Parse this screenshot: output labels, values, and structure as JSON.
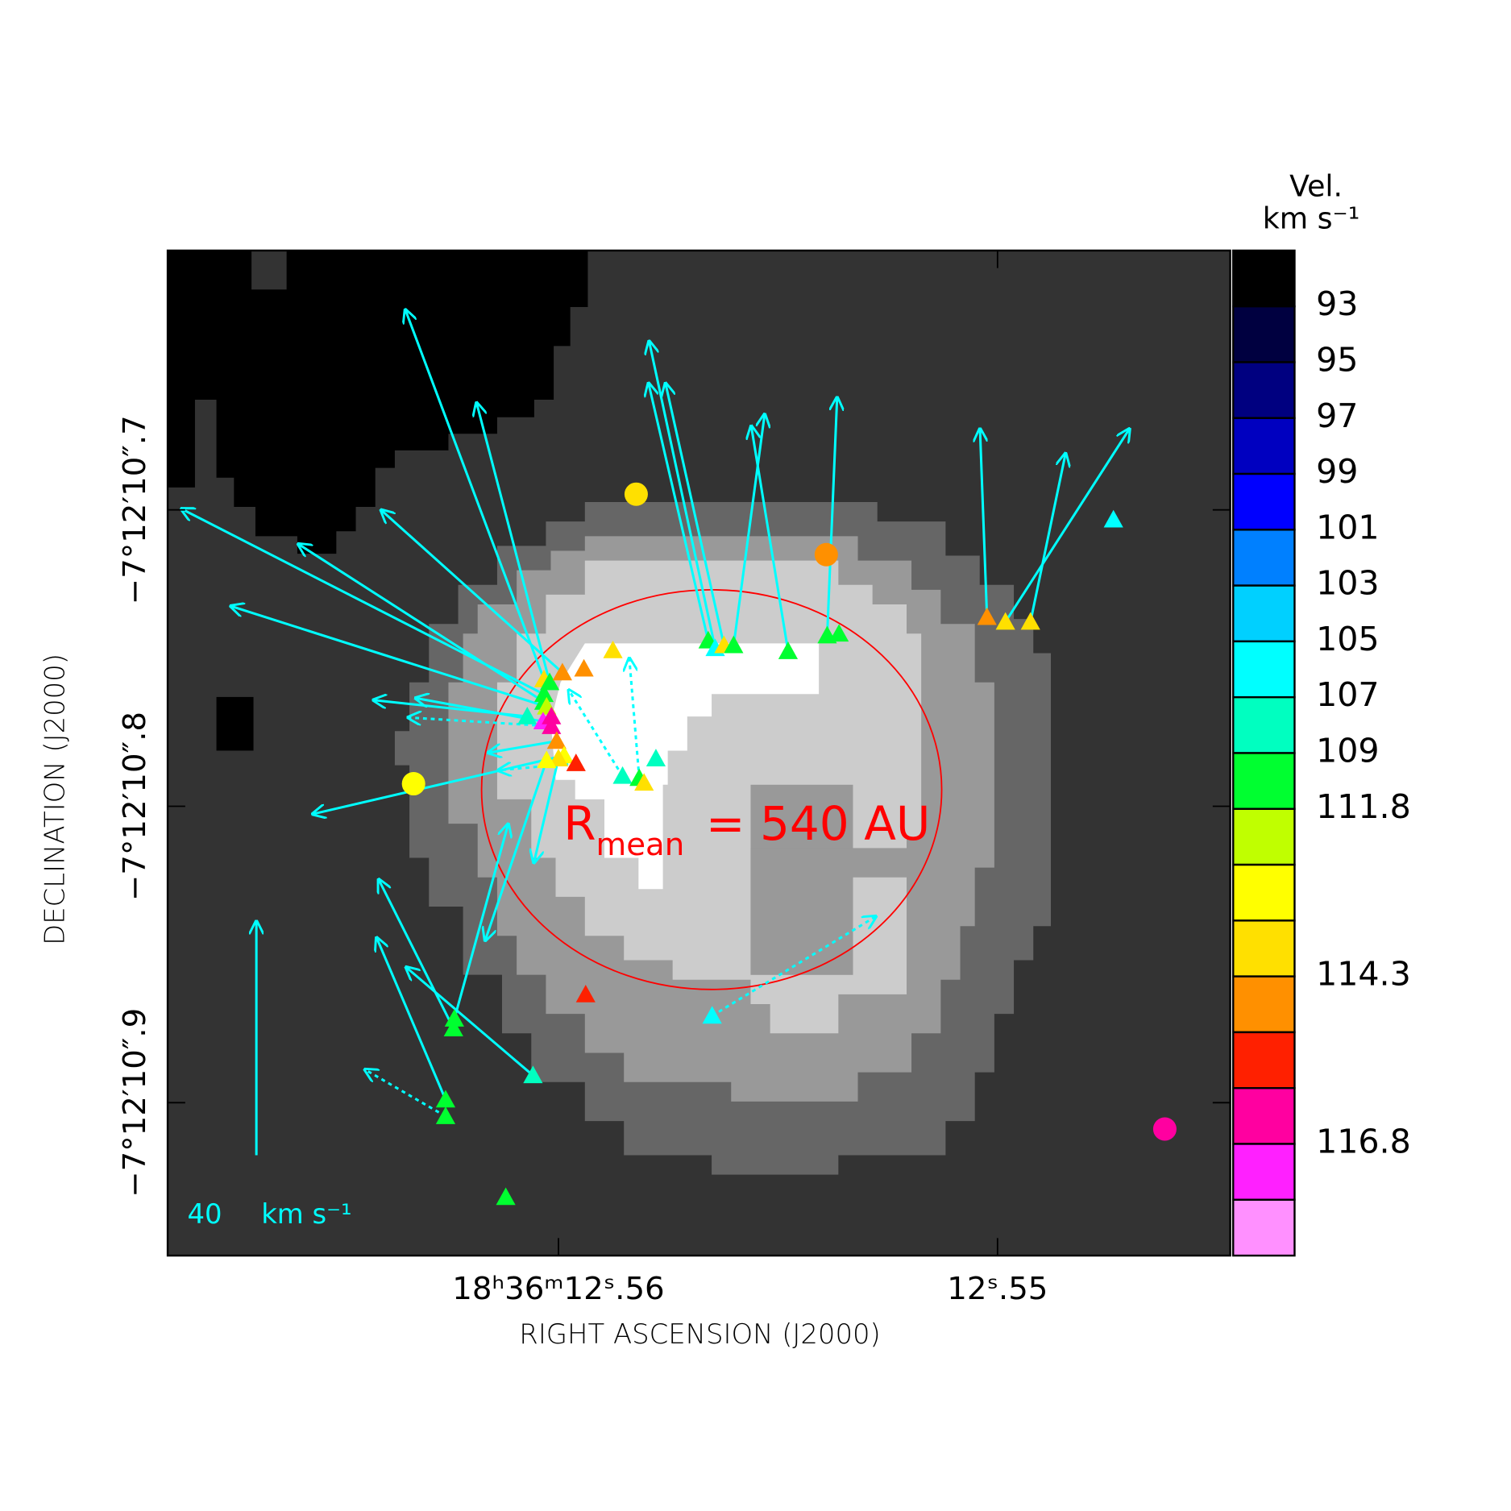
{
  "chart_data": {
    "type": "scatter",
    "x_label": "RIGHT ASCENSION (J2000)",
    "y_label": "DECLINATION (J2000)",
    "xlim": [
      12.5689,
      12.5447
    ],
    "ylim": [
      10.9516,
      10.6125
    ],
    "xticks": [
      {
        "value": 12.56,
        "label": "18ʰ36ᵐ12ˢ.56"
      },
      {
        "value": 12.55,
        "label": "12ˢ.55"
      }
    ],
    "yticks": [
      {
        "value": 10.7,
        "label": "−7°12′10″.7"
      },
      {
        "value": 10.8,
        "label": "−7°12′10″.8"
      },
      {
        "value": 10.9,
        "label": "−7°12′10″.9"
      }
    ],
    "annotation": {
      "text": "R",
      "sub": "mean",
      "rest": "= 540 AU",
      "color": "#ff0000"
    },
    "arrow_color": "#00ffff",
    "scale_arrow": {
      "value": 40,
      "unit": "km s⁻¹"
    },
    "colorbar": {
      "title": "Vel.",
      "unit": "km s⁻¹",
      "colors": [
        "#000000",
        "#000040",
        "#000080",
        "#0000c0",
        "#0000ff",
        "#0080ff",
        "#00d0ff",
        "#00ffff",
        "#00ffc0",
        "#00ff30",
        "#c0ff00",
        "#ffff00",
        "#ffe000",
        "#ff9000",
        "#ff2000",
        "#ff00a0",
        "#ff20ff",
        "#ff90ff"
      ],
      "levels": [
        null,
        93,
        95,
        97,
        99,
        101,
        103,
        105,
        107,
        109,
        111.8,
        null,
        null,
        114.3,
        null,
        null,
        116.8,
        null,
        null
      ]
    },
    "points": [
      {
        "x": 12.56033,
        "y": 10.7572,
        "marker": "triangle",
        "color": "#ffe000",
        "vra": 23.7,
        "vdec": 63.2
      },
      {
        "x": 12.5602,
        "y": 10.7582,
        "marker": "triangle",
        "color": "#00ff30",
        "vra": 12.5,
        "vdec": 47.8
      },
      {
        "x": 12.55991,
        "y": 10.7549,
        "marker": "triangle",
        "color": "#ff9000",
        "vra": 31.0,
        "vdec": 27.8
      },
      {
        "x": 12.56033,
        "y": 10.7622,
        "marker": "triangle",
        "color": "#00ff30",
        "vra": 62.0,
        "vdec": 31.7
      },
      {
        "x": 12.56033,
        "y": 10.7648,
        "marker": "triangle",
        "color": "#00ff30",
        "vra": 42.0,
        "vdec": 27.0
      },
      {
        "x": 12.56027,
        "y": 10.7664,
        "marker": "triangle",
        "color": "#c0ff00",
        "vra": 54.0,
        "vdec": 17.2
      },
      {
        "x": 12.56071,
        "y": 10.7697,
        "marker": "triangle",
        "color": "#00ffc0",
        "vra": 26.3,
        "vdec": 2.8
      },
      {
        "x": 12.56035,
        "y": 10.7714,
        "marker": "triangle",
        "color": "#ff20ff",
        "vra": 21.8,
        "vdec": 4.0
      },
      {
        "x": 12.56016,
        "y": 10.773,
        "marker": "triangle",
        "color": "#ff00a0",
        "vra": 24.5,
        "vdec": 1.5,
        "dashed": true
      },
      {
        "x": 12.56004,
        "y": 10.778,
        "marker": "triangle",
        "color": "#ff9000",
        "vra": 11.7,
        "vdec": -2.0
      },
      {
        "x": 12.55987,
        "y": 10.7829,
        "marker": "triangle",
        "color": "#ffff00",
        "vra": 43.0,
        "vdec": -10.0
      },
      {
        "x": 12.5596,
        "y": 10.7855,
        "marker": "triangle",
        "color": "#ff2000",
        "vra": 13.3,
        "vdec": -1.2,
        "dashed": true
      },
      {
        "x": 12.56,
        "y": 10.7839,
        "marker": "triangle",
        "color": "#ffe000",
        "vra": 4.2,
        "vdec": -17.8
      },
      {
        "x": 12.56027,
        "y": 10.7845,
        "marker": "triangle",
        "color": "#ffff00",
        "vra": 10.5,
        "vdec": -30.8
      },
      {
        "x": 12.55942,
        "y": 10.7536,
        "marker": "triangle",
        "color": "#ff9000"
      },
      {
        "x": 12.55876,
        "y": 10.7474,
        "marker": "triangle",
        "color": "#ffe000"
      },
      {
        "x": 12.55854,
        "y": 10.7898,
        "marker": "triangle",
        "color": "#00ffc0",
        "vra": 9.2,
        "vdec": 14.7,
        "dashed": true
      },
      {
        "x": 12.55816,
        "y": 10.7905,
        "marker": "triangle",
        "color": "#00ff30",
        "vra": 1.7,
        "vdec": 20.5,
        "dashed": true
      },
      {
        "x": 12.55805,
        "y": 10.7921,
        "marker": "triangle",
        "color": "#ffe000"
      },
      {
        "x": 12.55778,
        "y": 10.7839,
        "marker": "triangle",
        "color": "#00ffc0"
      },
      {
        "x": 12.55659,
        "y": 10.7441,
        "marker": "triangle",
        "color": "#00ff30",
        "vra": 10.2,
        "vdec": 44.0
      },
      {
        "x": 12.55643,
        "y": 10.7467,
        "marker": "triangle",
        "color": "#00ffff",
        "vra": 11.3,
        "vdec": 52.5
      },
      {
        "x": 12.55623,
        "y": 10.7457,
        "marker": "triangle",
        "color": "#ffe000",
        "vra": 10.0,
        "vdec": 44.8
      },
      {
        "x": 12.55601,
        "y": 10.7457,
        "marker": "triangle",
        "color": "#00ff30",
        "vra": -5.3,
        "vdec": 39.5
      },
      {
        "x": 12.55477,
        "y": 10.7477,
        "marker": "triangle",
        "color": "#00ff30",
        "vra": 6.3,
        "vdec": 38.5
      },
      {
        "x": 12.55388,
        "y": 10.7424,
        "marker": "triangle",
        "color": "#00ff30",
        "vra": -1.7,
        "vdec": 40.7
      },
      {
        "x": 12.55361,
        "y": 10.7418,
        "marker": "triangle",
        "color": "#00ff30"
      },
      {
        "x": 12.55024,
        "y": 10.7362,
        "marker": "triangle",
        "color": "#ff9000",
        "vra": 1.2,
        "vdec": 32.2
      },
      {
        "x": 12.54982,
        "y": 10.7378,
        "marker": "triangle",
        "color": "#ffe000",
        "vra": -21.2,
        "vdec": 33.0
      },
      {
        "x": 12.54925,
        "y": 10.7378,
        "marker": "triangle",
        "color": "#ffe000",
        "vra": -6.0,
        "vdec": 28.8
      },
      {
        "x": 12.54736,
        "y": 10.7033,
        "marker": "triangle",
        "color": "#00ffff"
      },
      {
        "x": 12.55938,
        "y": 10.8635,
        "marker": "triangle",
        "color": "#ff2000"
      },
      {
        "x": 12.5565,
        "y": 10.8707,
        "marker": "triangle",
        "color": "#00ffff",
        "vra": -28.0,
        "vdec": 17.0,
        "dashed": true
      },
      {
        "x": 12.56239,
        "y": 10.875,
        "marker": "triangle",
        "color": "#00ff30",
        "vra": 12.8,
        "vdec": 25.5
      },
      {
        "x": 12.56237,
        "y": 10.8717,
        "marker": "triangle",
        "color": "#00ff30",
        "vra": -9.2,
        "vdec": 33.3
      },
      {
        "x": 12.56058,
        "y": 10.8908,
        "marker": "triangle",
        "color": "#00ffc0",
        "vra": 21.7,
        "vdec": 18.5
      },
      {
        "x": 12.56257,
        "y": 10.899,
        "marker": "triangle",
        "color": "#00ff30",
        "vra": 11.8,
        "vdec": 27.7
      },
      {
        "x": 12.56257,
        "y": 10.9046,
        "marker": "triangle",
        "color": "#00ff30",
        "vra": 13.8,
        "vdec": 8.0,
        "dashed": true
      },
      {
        "x": 12.5612,
        "y": 10.9319,
        "marker": "triangle",
        "color": "#00ff30"
      },
      {
        "x": 12.55823,
        "y": 10.6947,
        "marker": "circle",
        "color": "#ffe000"
      },
      {
        "x": 12.5539,
        "y": 10.7151,
        "marker": "circle",
        "color": "#ff9000"
      },
      {
        "x": 12.5633,
        "y": 10.7924,
        "marker": "circle",
        "color": "#ffff00"
      },
      {
        "x": 12.54619,
        "y": 10.9089,
        "marker": "circle",
        "color": "#ff00a0"
      },
      {
        "x": 12.56016,
        "y": 10.7697,
        "marker": "triangle",
        "color": "#ff00a0"
      }
    ]
  }
}
